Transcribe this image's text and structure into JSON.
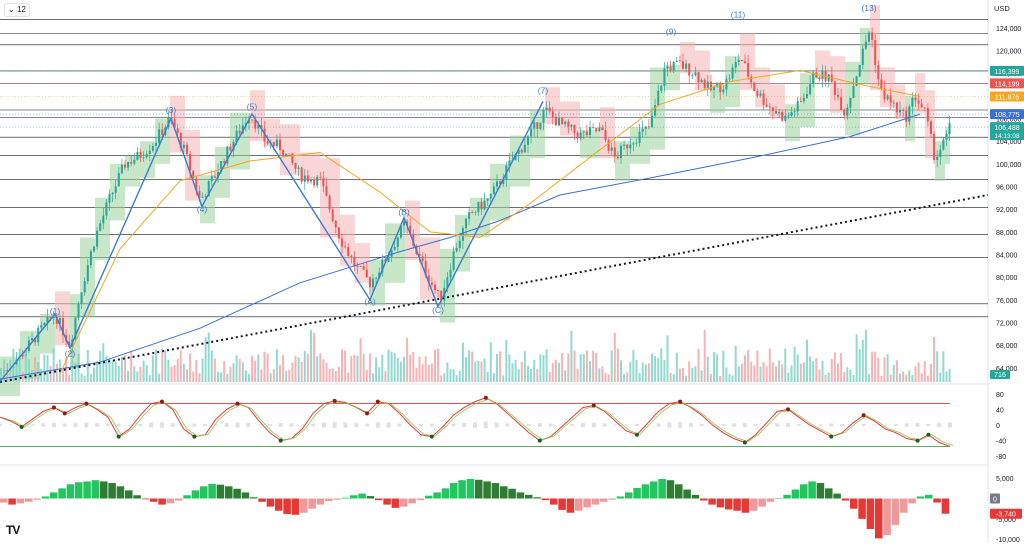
{
  "toolbar": {
    "interval_label": "12",
    "chevron": "chevron-down-icon"
  },
  "currency": "USD",
  "brand": "TV",
  "colors": {
    "up": "#26a69a",
    "down": "#ef5350",
    "bull_fill": "#9ad19a",
    "bear_fill": "#f4b3b3",
    "ema_orange": "#f5a623",
    "ema_blue": "#3b6fd8",
    "kijun_green": "#5aa85a",
    "wave_blue": "#3a7bd5",
    "vol_up": "#7fd3c8",
    "vol_down": "#f6a6a6",
    "osc_red": "#e53935",
    "osc_green": "#43a047",
    "hist_green": "#22c55e",
    "hist_red": "#e53935"
  },
  "chart_data": {
    "type": "line",
    "price_axis": {
      "ticks": [
        124000,
        120000,
        116000,
        112000,
        108000,
        104000,
        100000,
        96000,
        92000,
        88000,
        84000,
        80000,
        76000,
        72000,
        68000,
        64000
      ],
      "range": [
        61500,
        127500
      ]
    },
    "price_badges": [
      {
        "label": "116,399",
        "value": 116399,
        "color": "#26a69a"
      },
      {
        "label": "114,199",
        "value": 114199,
        "color": "#ef5350"
      },
      {
        "label": "111,876",
        "value": 111876,
        "color": "#f5a623"
      },
      {
        "label": "108,775",
        "value": 108775,
        "color": "#3b6fd8"
      },
      {
        "label": "106,488",
        "value": 106488,
        "color": "#26a69a",
        "sub": "14:13:08"
      }
    ],
    "horizontal_levels": [
      125500,
      123000,
      121000,
      116399,
      114199,
      109500,
      108200,
      104700,
      101500,
      97200,
      92300,
      87500,
      83500,
      75300,
      73000
    ],
    "close_path": [
      [
        0,
        63000
      ],
      [
        20,
        66000
      ],
      [
        40,
        70500
      ],
      [
        55,
        73500
      ],
      [
        70,
        68000
      ],
      [
        80,
        77000
      ],
      [
        95,
        87000
      ],
      [
        110,
        94000
      ],
      [
        125,
        100000
      ],
      [
        140,
        101500
      ],
      [
        155,
        104000
      ],
      [
        170,
        108000
      ],
      [
        185,
        102000
      ],
      [
        200,
        93500
      ],
      [
        215,
        98000
      ],
      [
        230,
        103000
      ],
      [
        250,
        109000
      ],
      [
        265,
        104000
      ],
      [
        280,
        103000
      ],
      [
        300,
        98000
      ],
      [
        320,
        97000
      ],
      [
        340,
        87000
      ],
      [
        355,
        82000
      ],
      [
        370,
        79000
      ],
      [
        385,
        83000
      ],
      [
        405,
        89500
      ],
      [
        420,
        83000
      ],
      [
        440,
        76000
      ],
      [
        455,
        85000
      ],
      [
        470,
        91000
      ],
      [
        490,
        94000
      ],
      [
        510,
        100000
      ],
      [
        530,
        105000
      ],
      [
        545,
        109500
      ],
      [
        560,
        107000
      ],
      [
        580,
        105000
      ],
      [
        600,
        106000
      ],
      [
        615,
        101000
      ],
      [
        630,
        104000
      ],
      [
        650,
        106500
      ],
      [
        665,
        117000
      ],
      [
        680,
        117500
      ],
      [
        695,
        116000
      ],
      [
        710,
        113000
      ],
      [
        725,
        114000
      ],
      [
        740,
        119000
      ],
      [
        755,
        113000
      ],
      [
        770,
        110000
      ],
      [
        785,
        108000
      ],
      [
        800,
        110500
      ],
      [
        815,
        116000
      ],
      [
        830,
        115000
      ],
      [
        845,
        109000
      ],
      [
        860,
        118000
      ],
      [
        870,
        124000
      ],
      [
        880,
        113000
      ],
      [
        895,
        110000
      ],
      [
        905,
        108000
      ],
      [
        915,
        112000
      ],
      [
        925,
        109000
      ],
      [
        935,
        101000
      ],
      [
        945,
        104000
      ],
      [
        950,
        106488
      ]
    ],
    "ema_slow": [
      [
        0,
        62000
      ],
      [
        100,
        65000
      ],
      [
        200,
        71000
      ],
      [
        300,
        79000
      ],
      [
        400,
        84500
      ],
      [
        450,
        87000
      ],
      [
        500,
        90000
      ],
      [
        560,
        94500
      ],
      [
        650,
        97500
      ],
      [
        750,
        101000
      ],
      [
        850,
        104800
      ],
      [
        920,
        108775
      ]
    ],
    "ema_mid": [
      [
        60,
        63000
      ],
      [
        120,
        85000
      ],
      [
        180,
        97000
      ],
      [
        250,
        100500
      ],
      [
        320,
        102000
      ],
      [
        380,
        95000
      ],
      [
        430,
        88000
      ],
      [
        480,
        87000
      ],
      [
        530,
        93000
      ],
      [
        600,
        102500
      ],
      [
        660,
        110500
      ],
      [
        730,
        114500
      ],
      [
        800,
        116500
      ],
      [
        860,
        114000
      ],
      [
        920,
        111876
      ]
    ],
    "trendline_dotted": [
      [
        0,
        61500
      ],
      [
        988,
        94500
      ]
    ],
    "wave_labels": [
      {
        "label": "(1)",
        "x": 55,
        "v": 73500
      },
      {
        "label": "(2)",
        "x": 70,
        "v": 66000
      },
      {
        "label": "(3)",
        "x": 171,
        "v": 109000
      },
      {
        "label": "(4)",
        "x": 202,
        "v": 91500
      },
      {
        "label": "(5)",
        "x": 252,
        "v": 109600
      },
      {
        "label": "(A)",
        "x": 370,
        "v": 75200
      },
      {
        "label": "(B)",
        "x": 404,
        "v": 91000
      },
      {
        "label": "(C)",
        "x": 438,
        "v": 73700
      },
      {
        "label": "(7)",
        "x": 543,
        "v": 112400
      },
      {
        "label": "(9)",
        "x": 671,
        "v": 122800
      },
      {
        "label": "(11)",
        "x": 738,
        "v": 125800
      },
      {
        "label": "(13)",
        "x": 869,
        "v": 127000
      }
    ],
    "wave_path": [
      [
        0,
        61600
      ],
      [
        55,
        73500
      ],
      [
        70,
        67500
      ],
      [
        171,
        108000
      ],
      [
        202,
        92500
      ],
      [
        252,
        108800
      ],
      [
        370,
        76000
      ],
      [
        404,
        90500
      ],
      [
        438,
        74800
      ],
      [
        543,
        111000
      ]
    ],
    "volume_axis_label": "716",
    "stoch": {
      "ticks": [
        80,
        40,
        0,
        -40,
        -80
      ],
      "range": [
        -95,
        95
      ],
      "upper": 55,
      "lower": -55,
      "values": [
        20,
        10,
        -5,
        15,
        35,
        45,
        30,
        45,
        55,
        40,
        20,
        -30,
        -10,
        25,
        55,
        60,
        40,
        -10,
        -30,
        -25,
        15,
        40,
        55,
        45,
        10,
        -20,
        -40,
        -35,
        -10,
        30,
        55,
        62,
        58,
        45,
        30,
        60,
        55,
        30,
        0,
        -25,
        -30,
        -5,
        25,
        45,
        60,
        70,
        55,
        30,
        5,
        -20,
        -40,
        -30,
        -5,
        20,
        45,
        50,
        35,
        10,
        -15,
        -25,
        5,
        35,
        55,
        60,
        45,
        25,
        0,
        -20,
        -35,
        -45,
        -25,
        5,
        35,
        40,
        20,
        0,
        -15,
        -30,
        -20,
        5,
        25,
        10,
        -10,
        -20,
        -35,
        -40,
        -25,
        -45,
        -55
      ]
    },
    "macd_hist": {
      "ticks": [
        5000,
        0,
        -5000,
        -10000
      ],
      "range": [
        -10200,
        7500
      ],
      "badges": [
        {
          "label": "0",
          "value": 0,
          "color": "#787b86"
        },
        {
          "label": "-3,740",
          "value": -3740,
          "color": "#e53935"
        }
      ],
      "values": [
        -1000,
        -1500,
        -1200,
        -800,
        -300,
        500,
        1500,
        2500,
        3500,
        4000,
        4200,
        4500,
        4200,
        3800,
        3000,
        2000,
        800,
        -200,
        -800,
        -1500,
        -1200,
        -500,
        800,
        2000,
        3000,
        3600,
        3400,
        3000,
        2400,
        1500,
        300,
        -800,
        -2000,
        -3000,
        -3800,
        -4000,
        -3500,
        -2500,
        -1500,
        -600,
        -300,
        200,
        800,
        1200,
        600,
        -400,
        -1500,
        -2300,
        -2000,
        -1200,
        -400,
        700,
        1500,
        2500,
        3800,
        4500,
        4800,
        4600,
        4200,
        3800,
        3000,
        2400,
        1500,
        900,
        300,
        -400,
        -1500,
        -2800,
        -3500,
        -3000,
        -2200,
        -1500,
        -800,
        -300,
        500,
        1500,
        2600,
        3500,
        4200,
        4800,
        4500,
        3500,
        2200,
        900,
        -500,
        -1500,
        -2200,
        -2700,
        -3000,
        -3500,
        -3000,
        -2000,
        -800,
        0,
        900,
        2200,
        3500,
        4200,
        3800,
        2500,
        1200,
        -500,
        -2500,
        -5000,
        -7500,
        -9800,
        -9000,
        -6500,
        -3500,
        -1200,
        500,
        900,
        -1000,
        -3740
      ]
    }
  }
}
